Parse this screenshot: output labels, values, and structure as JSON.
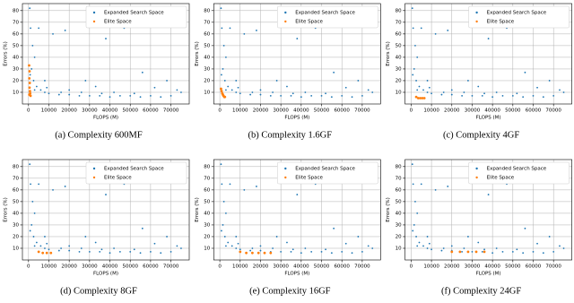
{
  "chart_data": [
    {
      "type": "scatter",
      "caption": "(a) Complexity 600MF",
      "xlabel": "FLOPS (M)",
      "ylabel": "Errors (%)",
      "xlim": [
        -3000,
        79000
      ],
      "ylim": [
        0,
        86
      ],
      "xticks": [
        0,
        10000,
        20000,
        30000,
        40000,
        50000,
        60000,
        70000
      ],
      "yticks": [
        10,
        20,
        30,
        40,
        50,
        60,
        70,
        80
      ],
      "grid": true,
      "legend": "upper right",
      "series": [
        {
          "name": "Expanded Search Space",
          "color": "#1f77b4",
          "x": [
            600,
            1000,
            2000,
            3000,
            1500,
            800,
            2500,
            4000,
            6000,
            8000,
            10000,
            15000,
            20000,
            25000,
            30000,
            35000,
            40000,
            45000,
            50000,
            55000,
            60000,
            65000,
            70000,
            75000,
            12000,
            18000,
            38000,
            47000,
            56000,
            28000,
            33000,
            5000,
            8000,
            3000,
            20000,
            42000,
            62000,
            68000,
            73000,
            16000,
            9000,
            26000,
            36000,
            52000
          ],
          "values": [
            82,
            65,
            50,
            40,
            30,
            25,
            20,
            15,
            12,
            10,
            9,
            8,
            8,
            7,
            7,
            7,
            6,
            7,
            7,
            6,
            7,
            6,
            7,
            10,
            60,
            63,
            56,
            65,
            27,
            20,
            15,
            65,
            20,
            12,
            12,
            10,
            14,
            20,
            12,
            10,
            14,
            10,
            9,
            9
          ]
        },
        {
          "name": "Elite Space",
          "color": "#ff7f0e",
          "x": [
            300,
            500,
            400,
            600,
            500,
            700,
            800,
            400,
            1000
          ],
          "values": [
            33,
            28,
            22,
            18,
            14,
            11,
            9,
            8,
            7
          ]
        }
      ]
    },
    {
      "type": "scatter",
      "caption": "(b) Complexity 1.6GF",
      "xlabel": "FLOPS (M)",
      "ylabel": "Errors (%)",
      "xlim": [
        -3000,
        79000
      ],
      "ylim": [
        0,
        86
      ],
      "xticks": [
        0,
        10000,
        20000,
        30000,
        40000,
        50000,
        60000,
        70000
      ],
      "yticks": [
        10,
        20,
        30,
        40,
        50,
        60,
        70,
        80
      ],
      "grid": true,
      "legend": "upper right",
      "series": [
        {
          "name": "Expanded Search Space",
          "color": "#1f77b4",
          "x": [
            600,
            1000,
            2000,
            3000,
            1500,
            800,
            2500,
            4000,
            6000,
            8000,
            10000,
            15000,
            20000,
            25000,
            30000,
            35000,
            40000,
            45000,
            50000,
            55000,
            60000,
            65000,
            70000,
            75000,
            12000,
            18000,
            38000,
            47000,
            56000,
            28000,
            33000,
            5000,
            8000,
            3000,
            20000,
            42000,
            62000,
            68000,
            73000,
            16000,
            9000,
            26000,
            36000,
            52000
          ],
          "values": [
            82,
            65,
            50,
            40,
            30,
            25,
            20,
            15,
            12,
            10,
            9,
            8,
            8,
            7,
            7,
            7,
            6,
            7,
            7,
            6,
            7,
            6,
            7,
            10,
            60,
            63,
            56,
            65,
            27,
            20,
            15,
            65,
            20,
            12,
            12,
            10,
            14,
            20,
            12,
            10,
            14,
            10,
            9,
            9
          ]
        },
        {
          "name": "Elite Space",
          "color": "#ff7f0e",
          "x": [
            600,
            900,
            1200,
            1500,
            1800,
            2200,
            2500
          ],
          "values": [
            13,
            11,
            9,
            8,
            7,
            6,
            6
          ]
        }
      ]
    },
    {
      "type": "scatter",
      "caption": "(c) Complexity 4GF",
      "xlabel": "FLOPS (M)",
      "ylabel": "Errors (%)",
      "xlim": [
        -3000,
        79000
      ],
      "ylim": [
        0,
        86
      ],
      "xticks": [
        0,
        10000,
        20000,
        30000,
        40000,
        50000,
        60000,
        70000
      ],
      "yticks": [
        10,
        20,
        30,
        40,
        50,
        60,
        70,
        80
      ],
      "grid": true,
      "legend": "upper right",
      "series": [
        {
          "name": "Expanded Search Space",
          "color": "#1f77b4",
          "x": [
            600,
            1000,
            2000,
            3000,
            1500,
            800,
            2500,
            4000,
            6000,
            8000,
            10000,
            15000,
            20000,
            25000,
            30000,
            35000,
            40000,
            45000,
            50000,
            55000,
            60000,
            65000,
            70000,
            75000,
            12000,
            18000,
            38000,
            47000,
            56000,
            28000,
            33000,
            5000,
            8000,
            3000,
            20000,
            42000,
            62000,
            68000,
            73000,
            16000,
            9000,
            26000,
            36000,
            52000
          ],
          "values": [
            82,
            65,
            50,
            40,
            30,
            25,
            20,
            15,
            12,
            10,
            9,
            8,
            8,
            7,
            7,
            7,
            6,
            7,
            7,
            6,
            7,
            6,
            7,
            10,
            60,
            63,
            56,
            65,
            27,
            20,
            15,
            65,
            20,
            12,
            12,
            10,
            14,
            20,
            12,
            10,
            14,
            10,
            9,
            9
          ]
        },
        {
          "name": "Elite Space",
          "color": "#ff7f0e",
          "x": [
            2500,
            3500,
            4500,
            5500,
            6500
          ],
          "values": [
            6,
            5,
            5,
            5,
            5
          ]
        }
      ]
    },
    {
      "type": "scatter",
      "caption": "(d) Complexity 8GF",
      "xlabel": "FLOPS (M)",
      "ylabel": "Errors (%)",
      "xlim": [
        -3000,
        79000
      ],
      "ylim": [
        0,
        86
      ],
      "xticks": [
        0,
        10000,
        20000,
        30000,
        40000,
        50000,
        60000,
        70000
      ],
      "yticks": [
        10,
        20,
        30,
        40,
        50,
        60,
        70,
        80
      ],
      "grid": true,
      "legend": "upper right",
      "series": [
        {
          "name": "Expanded Search Space",
          "color": "#1f77b4",
          "x": [
            600,
            1000,
            2000,
            3000,
            1500,
            800,
            2500,
            4000,
            6000,
            8000,
            10000,
            15000,
            20000,
            25000,
            30000,
            35000,
            40000,
            45000,
            50000,
            55000,
            60000,
            65000,
            70000,
            75000,
            12000,
            18000,
            38000,
            47000,
            56000,
            28000,
            33000,
            5000,
            8000,
            3000,
            20000,
            42000,
            62000,
            68000,
            73000,
            16000,
            9000,
            26000,
            36000,
            52000
          ],
          "values": [
            82,
            65,
            50,
            40,
            30,
            25,
            20,
            15,
            12,
            10,
            9,
            8,
            8,
            7,
            7,
            7,
            6,
            7,
            7,
            6,
            7,
            6,
            7,
            10,
            60,
            63,
            56,
            65,
            27,
            20,
            15,
            65,
            20,
            12,
            12,
            10,
            14,
            20,
            12,
            10,
            14,
            10,
            9,
            9
          ]
        },
        {
          "name": "Elite Space",
          "color": "#ff7f0e",
          "x": [
            5000,
            7000,
            9000,
            11000
          ],
          "values": [
            7,
            6,
            6,
            6
          ]
        }
      ]
    },
    {
      "type": "scatter",
      "caption": "(e) Complexity 16GF",
      "xlabel": "FLOPS (M)",
      "ylabel": "Errors (%)",
      "xlim": [
        -3000,
        79000
      ],
      "ylim": [
        0,
        86
      ],
      "xticks": [
        0,
        10000,
        20000,
        30000,
        40000,
        50000,
        60000,
        70000
      ],
      "yticks": [
        10,
        20,
        30,
        40,
        50,
        60,
        70,
        80
      ],
      "grid": true,
      "legend": "upper right",
      "series": [
        {
          "name": "Expanded Search Space",
          "color": "#1f77b4",
          "x": [
            600,
            1000,
            2000,
            3000,
            1500,
            800,
            2500,
            4000,
            6000,
            8000,
            10000,
            15000,
            20000,
            25000,
            30000,
            35000,
            40000,
            45000,
            50000,
            55000,
            60000,
            65000,
            70000,
            75000,
            12000,
            18000,
            38000,
            47000,
            56000,
            28000,
            33000,
            5000,
            8000,
            3000,
            20000,
            42000,
            62000,
            68000,
            73000,
            16000,
            9000,
            26000,
            36000,
            52000
          ],
          "values": [
            82,
            65,
            50,
            40,
            30,
            25,
            20,
            15,
            12,
            10,
            9,
            8,
            8,
            7,
            7,
            7,
            6,
            7,
            7,
            6,
            7,
            6,
            7,
            10,
            60,
            63,
            56,
            65,
            27,
            20,
            15,
            65,
            20,
            12,
            12,
            10,
            14,
            20,
            12,
            10,
            14,
            10,
            9,
            9
          ]
        },
        {
          "name": "Elite Space",
          "color": "#ff7f0e",
          "x": [
            10000,
            13000,
            16000,
            19000,
            22000,
            25000
          ],
          "values": [
            7,
            6,
            6,
            6,
            6,
            6
          ]
        }
      ]
    },
    {
      "type": "scatter",
      "caption": "(f) Complexity 24GF",
      "xlabel": "FLOPS (M)",
      "ylabel": "Errors (%)",
      "xlim": [
        -3000,
        79000
      ],
      "ylim": [
        0,
        86
      ],
      "xticks": [
        0,
        10000,
        20000,
        30000,
        40000,
        50000,
        60000,
        70000
      ],
      "yticks": [
        10,
        20,
        30,
        40,
        50,
        60,
        70,
        80
      ],
      "grid": true,
      "legend": "upper right",
      "series": [
        {
          "name": "Expanded Search Space",
          "color": "#1f77b4",
          "x": [
            600,
            1000,
            2000,
            3000,
            1500,
            800,
            2500,
            4000,
            6000,
            8000,
            10000,
            15000,
            20000,
            25000,
            30000,
            35000,
            40000,
            45000,
            50000,
            55000,
            60000,
            65000,
            70000,
            75000,
            12000,
            18000,
            38000,
            47000,
            56000,
            28000,
            33000,
            5000,
            8000,
            3000,
            20000,
            42000,
            62000,
            68000,
            73000,
            16000,
            9000,
            26000,
            36000,
            52000
          ],
          "values": [
            82,
            65,
            50,
            40,
            30,
            25,
            20,
            15,
            12,
            10,
            9,
            8,
            8,
            7,
            7,
            7,
            6,
            7,
            7,
            6,
            7,
            6,
            7,
            10,
            60,
            63,
            56,
            65,
            27,
            20,
            15,
            65,
            20,
            12,
            12,
            10,
            14,
            20,
            12,
            10,
            14,
            10,
            9,
            9
          ]
        },
        {
          "name": "Elite Space",
          "color": "#ff7f0e",
          "x": [
            20000,
            24000,
            28000,
            32000,
            36000
          ],
          "values": [
            7,
            7,
            7,
            7,
            7
          ]
        }
      ]
    }
  ]
}
